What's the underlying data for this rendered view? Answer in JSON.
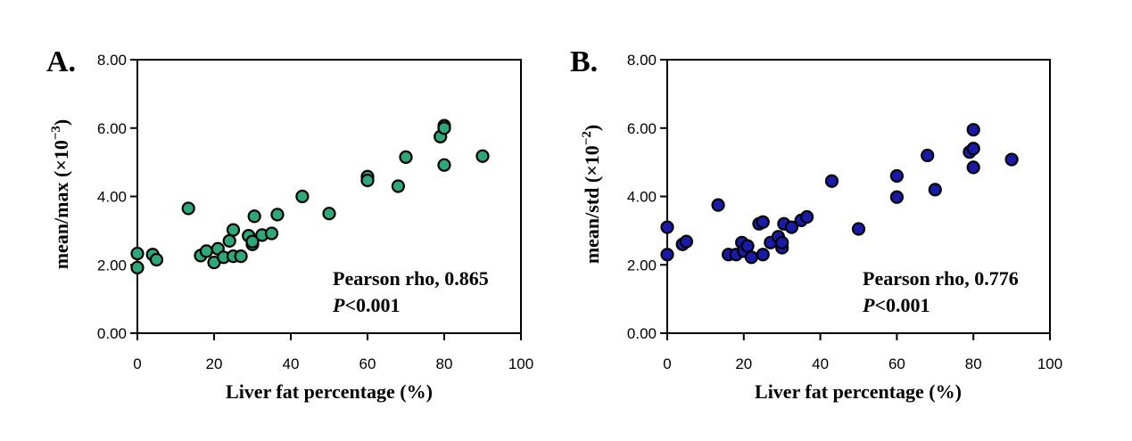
{
  "chart_data": [
    {
      "type": "scatter",
      "panel_label": "A.",
      "xlabel": "Liver fat percentage (%)",
      "ylabel_base": "mean/max (×10",
      "ylabel_exp": "−3",
      "ylabel_close": ")",
      "xlim": [
        0,
        100
      ],
      "ylim": [
        0,
        8
      ],
      "xticks": [
        "0",
        "20",
        "40",
        "60",
        "80",
        "100"
      ],
      "yticks": [
        "0.00",
        "2.00",
        "4.00",
        "6.00",
        "8.00"
      ],
      "marker_color": "#2ea87a",
      "annotation_line1": "Pearson rho, 0.865",
      "annotation_p": "P",
      "annotation_line2_rest": "<0.001",
      "points": [
        [
          0,
          2.33
        ],
        [
          0,
          1.92
        ],
        [
          4,
          2.3
        ],
        [
          5,
          2.15
        ],
        [
          13.3,
          3.65
        ],
        [
          16.5,
          2.27
        ],
        [
          18,
          2.4
        ],
        [
          20,
          2.07
        ],
        [
          21,
          2.47
        ],
        [
          22.5,
          2.22
        ],
        [
          24,
          2.7
        ],
        [
          25,
          3.02
        ],
        [
          25,
          2.25
        ],
        [
          27,
          2.25
        ],
        [
          29,
          2.85
        ],
        [
          30,
          2.6
        ],
        [
          30,
          2.68
        ],
        [
          30.5,
          3.42
        ],
        [
          32.5,
          2.87
        ],
        [
          35,
          2.92
        ],
        [
          36.5,
          3.47
        ],
        [
          43,
          4.0
        ],
        [
          50,
          3.5
        ],
        [
          60,
          4.58
        ],
        [
          60,
          4.47
        ],
        [
          68,
          4.3
        ],
        [
          70,
          5.15
        ],
        [
          79,
          5.75
        ],
        [
          80,
          6.07
        ],
        [
          80,
          4.92
        ],
        [
          80,
          6.0
        ],
        [
          90,
          5.18
        ]
      ]
    },
    {
      "type": "scatter",
      "panel_label": "B.",
      "xlabel": "Liver fat percentage (%)",
      "ylabel_base": "mean/std (×10",
      "ylabel_exp": "−2",
      "ylabel_close": ")",
      "xlim": [
        0,
        100
      ],
      "ylim": [
        0,
        8
      ],
      "xticks": [
        "0",
        "20",
        "40",
        "60",
        "80",
        "100"
      ],
      "yticks": [
        "0.00",
        "2.00",
        "4.00",
        "6.00",
        "8.00"
      ],
      "marker_color": "#1a1aa8",
      "annotation_line1": "Pearson rho, 0.776",
      "annotation_p": "P",
      "annotation_line2_rest": "<0.001",
      "points": [
        [
          0,
          3.1
        ],
        [
          0,
          2.3
        ],
        [
          4,
          2.6
        ],
        [
          5,
          2.68
        ],
        [
          13.3,
          3.75
        ],
        [
          16,
          2.3
        ],
        [
          18,
          2.3
        ],
        [
          19.5,
          2.65
        ],
        [
          20,
          2.4
        ],
        [
          21,
          2.55
        ],
        [
          22,
          2.22
        ],
        [
          24,
          3.2
        ],
        [
          25,
          3.25
        ],
        [
          25,
          2.3
        ],
        [
          27,
          2.65
        ],
        [
          29,
          2.82
        ],
        [
          30,
          2.5
        ],
        [
          30,
          2.65
        ],
        [
          30.5,
          3.2
        ],
        [
          32.5,
          3.1
        ],
        [
          35,
          3.3
        ],
        [
          36.5,
          3.4
        ],
        [
          43,
          4.45
        ],
        [
          50,
          3.05
        ],
        [
          60,
          4.6
        ],
        [
          60,
          3.98
        ],
        [
          68,
          5.2
        ],
        [
          70,
          4.2
        ],
        [
          79,
          5.3
        ],
        [
          80,
          5.95
        ],
        [
          80,
          5.4
        ],
        [
          80,
          4.85
        ],
        [
          90,
          5.08
        ]
      ]
    }
  ]
}
